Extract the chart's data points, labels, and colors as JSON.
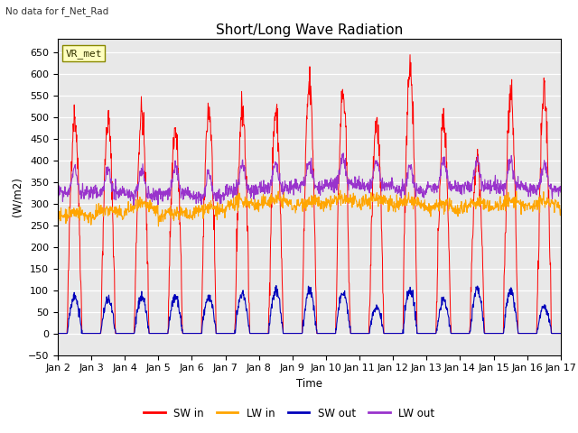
{
  "title": "Short/Long Wave Radiation",
  "xlabel": "Time",
  "ylabel": "(W/m2)",
  "top_left_text": "No data for f_Net_Rad",
  "legend_label": "VR_met",
  "ylim": [
    -50,
    680
  ],
  "colors": {
    "SW_in": "#FF0000",
    "LW_in": "#FFA500",
    "SW_out": "#0000BB",
    "LW_out": "#9933CC"
  },
  "background_color": "#E8E8E8",
  "n_days": 15,
  "SW_in_peaks": [
    500,
    490,
    510,
    470,
    520,
    520,
    510,
    570,
    550,
    490,
    620,
    490,
    410,
    550,
    550
  ],
  "LW_in_base": [
    265,
    270,
    280,
    265,
    275,
    290,
    295,
    290,
    295,
    298,
    290,
    282,
    288,
    290,
    290
  ],
  "SW_out_peaks": [
    85,
    80,
    85,
    85,
    85,
    90,
    100,
    100,
    95,
    60,
    100,
    75,
    100,
    100,
    60
  ],
  "LW_out_base": [
    325,
    325,
    320,
    325,
    315,
    330,
    335,
    340,
    345,
    340,
    330,
    340,
    338,
    340,
    332
  ]
}
